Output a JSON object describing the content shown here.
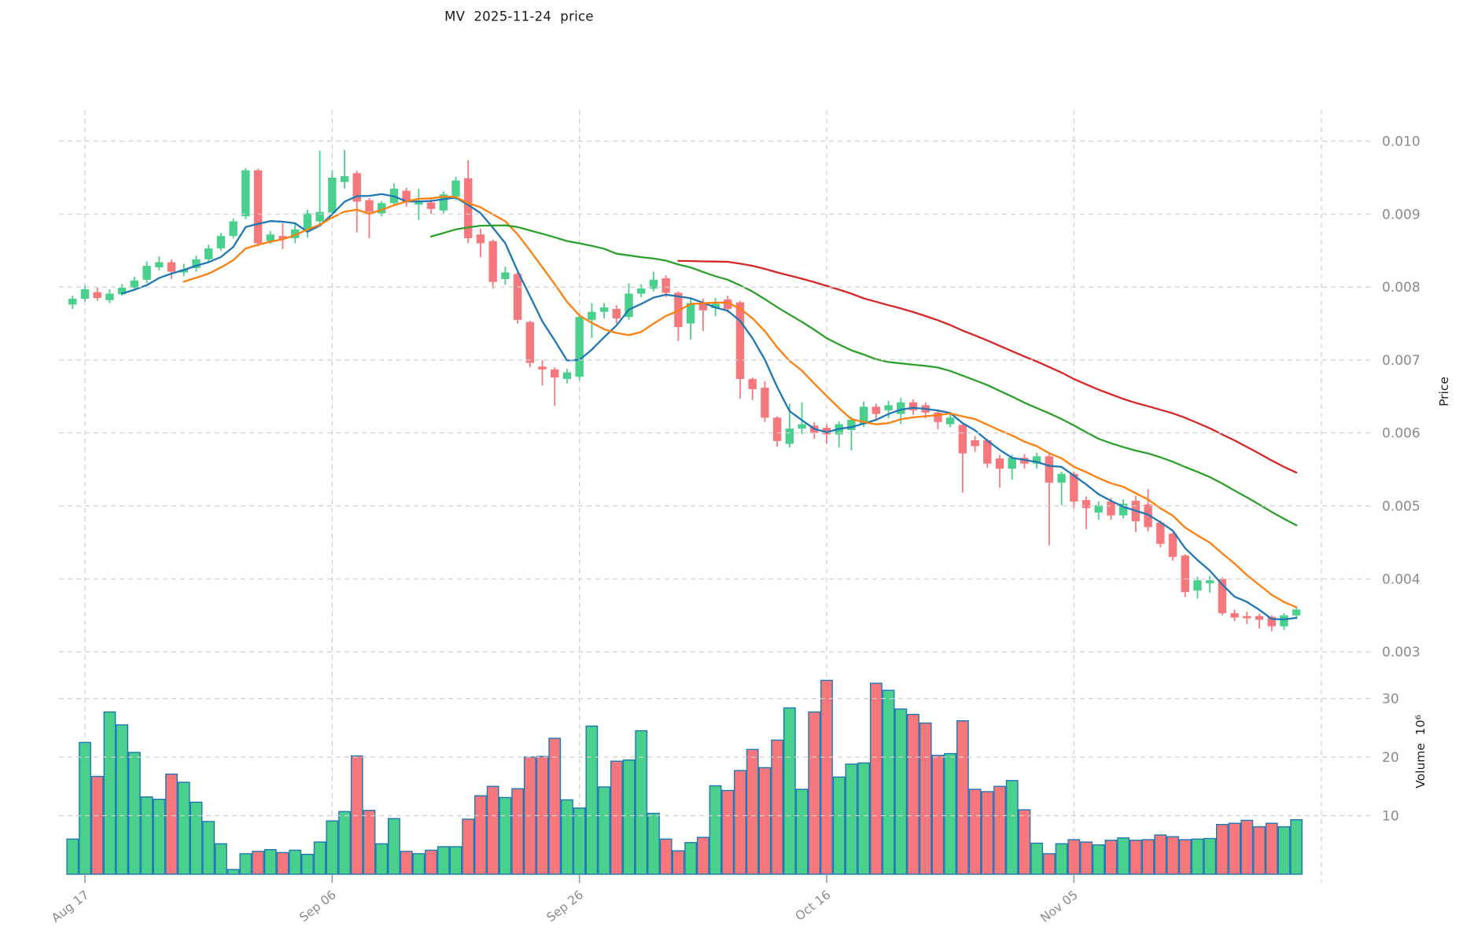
{
  "title": "MV  2025-11-24  price",
  "axes": {
    "price_label": "Price",
    "volume_label": "Volume  10⁶",
    "price_tick_labels": [
      "0.010",
      "0.009",
      "0.008",
      "0.007",
      "0.006",
      "0.005",
      "0.004",
      "0.003"
    ],
    "volume_tick_labels": [
      "30",
      "20",
      "10"
    ],
    "x_tick_labels": [
      "Aug 17",
      "Sep 06",
      "Sep 26",
      "Oct 16",
      "Nov 05"
    ]
  },
  "colors": {
    "up": "#48d08c",
    "down": "#f6787d",
    "volume_edge": "#1f77b4",
    "ma_blue": "#1f77b4",
    "ma_orange": "#ff7f0e",
    "ma_green": "#2ca02c",
    "ma_red": "#d62728",
    "grid": "#cfcfcf",
    "tick_text": "#8a8a8a",
    "title_text": "#1a1a1a"
  },
  "chart_data": {
    "type": "candlestick",
    "title": "MV  2025-11-24  price",
    "start_date": "2025-08-16",
    "interval": "1 day",
    "n_bars": 100,
    "x_ticks": [
      {
        "index": 1,
        "label": "Aug 17"
      },
      {
        "index": 21,
        "label": "Sep 06"
      },
      {
        "index": 41,
        "label": "Sep 26"
      },
      {
        "index": 61,
        "label": "Oct 16"
      },
      {
        "index": 81,
        "label": "Nov 05"
      }
    ],
    "price_axis_ticks": [
      0.01,
      0.009,
      0.008,
      0.007,
      0.006,
      0.005,
      0.004,
      0.003
    ],
    "volume_axis_ticks_millions": [
      30,
      20,
      10
    ],
    "ylabel_price": "Price",
    "ylabel_volume": "Volume 10^6",
    "moving_averages": [
      {
        "window": 5,
        "color": "#1f77b4"
      },
      {
        "window": 10,
        "color": "#ff7f0e"
      },
      {
        "window": 30,
        "color": "#2ca02c"
      },
      {
        "window": 50,
        "color": "#d62728"
      }
    ],
    "open": [
      0.00776,
      0.00784,
      0.00793,
      0.00782,
      0.0079,
      0.00799,
      0.0081,
      0.00827,
      0.00834,
      0.0082,
      0.00826,
      0.00838,
      0.00853,
      0.0087,
      0.00897,
      0.0096,
      0.00863,
      0.0087,
      0.00867,
      0.00878,
      0.0089,
      0.00902,
      0.00944,
      0.00956,
      0.00919,
      0.00901,
      0.00915,
      0.00932,
      0.00913,
      0.00916,
      0.00905,
      0.00924,
      0.00949,
      0.00872,
      0.00863,
      0.00811,
      0.00818,
      0.00752,
      0.00691,
      0.00687,
      0.00674,
      0.00677,
      0.00755,
      0.00766,
      0.0077,
      0.00759,
      0.00791,
      0.00798,
      0.00812,
      0.00792,
      0.0075,
      0.00777,
      0.00771,
      0.00783,
      0.00779,
      0.00674,
      0.00662,
      0.00621,
      0.00585,
      0.00606,
      0.0061,
      0.00607,
      0.00598,
      0.00604,
      0.00612,
      0.00636,
      0.00631,
      0.00626,
      0.00642,
      0.00638,
      0.00628,
      0.00612,
      0.00611,
      0.0059,
      0.0059,
      0.00565,
      0.00551,
      0.00566,
      0.00558,
      0.00568,
      0.00532,
      0.00544,
      0.00508,
      0.00491,
      0.00506,
      0.00487,
      0.00507,
      0.00502,
      0.00477,
      0.00462,
      0.00432,
      0.00384,
      0.00394,
      0.004,
      0.00353,
      0.00349,
      0.00349,
      0.00348,
      0.00335,
      0.0035
    ],
    "high": [
      0.00788,
      0.00802,
      0.00799,
      0.00797,
      0.00804,
      0.00814,
      0.00835,
      0.00842,
      0.00838,
      0.00832,
      0.00843,
      0.00858,
      0.00874,
      0.00894,
      0.00963,
      0.00962,
      0.00877,
      0.00888,
      0.00887,
      0.00906,
      0.00987,
      0.0096,
      0.00988,
      0.00959,
      0.00922,
      0.00918,
      0.00942,
      0.00936,
      0.00935,
      0.0092,
      0.00931,
      0.00951,
      0.00974,
      0.0088,
      0.00865,
      0.00828,
      0.0082,
      0.00754,
      0.007,
      0.0069,
      0.00688,
      0.00764,
      0.00778,
      0.00778,
      0.00775,
      0.00805,
      0.00804,
      0.00821,
      0.00816,
      0.00794,
      0.00784,
      0.00784,
      0.00785,
      0.00788,
      0.00781,
      0.00676,
      0.00671,
      0.00623,
      0.0064,
      0.00642,
      0.00615,
      0.00612,
      0.00616,
      0.00622,
      0.00643,
      0.0064,
      0.00644,
      0.00648,
      0.00646,
      0.00642,
      0.00632,
      0.00626,
      0.00614,
      0.00596,
      0.00592,
      0.0057,
      0.0057,
      0.00571,
      0.00573,
      0.00571,
      0.00547,
      0.00547,
      0.00513,
      0.00506,
      0.00511,
      0.00509,
      0.00514,
      0.00523,
      0.0048,
      0.00464,
      0.00434,
      0.00403,
      0.00404,
      0.00402,
      0.00358,
      0.00355,
      0.00352,
      0.0035,
      0.00353,
      0.0036
    ],
    "low": [
      0.0077,
      0.0078,
      0.00781,
      0.00778,
      0.00788,
      0.00796,
      0.00805,
      0.00823,
      0.00811,
      0.00815,
      0.00821,
      0.00834,
      0.0085,
      0.00867,
      0.00893,
      0.00856,
      0.00859,
      0.00852,
      0.0086,
      0.00868,
      0.00886,
      0.00899,
      0.00935,
      0.00875,
      0.00867,
      0.00897,
      0.00911,
      0.0091,
      0.00892,
      0.009,
      0.00901,
      0.00919,
      0.0086,
      0.00841,
      0.00798,
      0.00803,
      0.0075,
      0.0069,
      0.00665,
      0.00637,
      0.00668,
      0.00672,
      0.0073,
      0.00757,
      0.0075,
      0.00755,
      0.00786,
      0.00794,
      0.00786,
      0.00726,
      0.00728,
      0.0074,
      0.0076,
      0.00765,
      0.00647,
      0.00645,
      0.00615,
      0.00581,
      0.0058,
      0.00598,
      0.00592,
      0.00585,
      0.0058,
      0.00576,
      0.00608,
      0.00618,
      0.0062,
      0.00612,
      0.00625,
      0.0062,
      0.00605,
      0.00608,
      0.00518,
      0.00574,
      0.00552,
      0.00525,
      0.00536,
      0.00551,
      0.00551,
      0.00446,
      0.00501,
      0.00497,
      0.00468,
      0.00481,
      0.00481,
      0.00483,
      0.00464,
      0.00465,
      0.00443,
      0.00425,
      0.00375,
      0.00373,
      0.00381,
      0.0035,
      0.00342,
      0.00338,
      0.00332,
      0.00328,
      0.0033,
      0.00345
    ],
    "close": [
      0.00784,
      0.00797,
      0.00785,
      0.00791,
      0.00799,
      0.00809,
      0.00829,
      0.00834,
      0.00821,
      0.00824,
      0.00838,
      0.00853,
      0.0087,
      0.0089,
      0.0096,
      0.0086,
      0.00872,
      0.00866,
      0.00879,
      0.00901,
      0.00903,
      0.0095,
      0.00952,
      0.00917,
      0.00903,
      0.00915,
      0.00935,
      0.00917,
      0.00916,
      0.00907,
      0.00927,
      0.00946,
      0.00867,
      0.0086,
      0.00807,
      0.0082,
      0.00755,
      0.00696,
      0.00687,
      0.00676,
      0.00683,
      0.00759,
      0.00766,
      0.00772,
      0.00757,
      0.00791,
      0.00798,
      0.0081,
      0.00792,
      0.00745,
      0.00778,
      0.00768,
      0.00777,
      0.0077,
      0.00674,
      0.0066,
      0.00621,
      0.00589,
      0.00606,
      0.00612,
      0.006,
      0.00598,
      0.00612,
      0.00618,
      0.00636,
      0.00626,
      0.00638,
      0.00642,
      0.00631,
      0.00628,
      0.00615,
      0.00621,
      0.00572,
      0.00582,
      0.00558,
      0.00551,
      0.00566,
      0.00558,
      0.00568,
      0.00532,
      0.00544,
      0.00506,
      0.00497,
      0.00501,
      0.00487,
      0.00503,
      0.00479,
      0.00471,
      0.00448,
      0.0043,
      0.00382,
      0.00398,
      0.00398,
      0.00353,
      0.00347,
      0.00346,
      0.00344,
      0.00335,
      0.0035,
      0.00358
    ],
    "volume_millions": [
      6,
      22.5,
      16.7,
      27.7,
      25.5,
      20.8,
      13.2,
      12.8,
      17.1,
      15.7,
      12.3,
      9,
      5.2,
      0.8,
      3.5,
      3.9,
      4.2,
      3.7,
      4.1,
      3.4,
      5.5,
      9.1,
      10.7,
      20.2,
      10.9,
      5.2,
      9.5,
      3.9,
      3.5,
      4.1,
      4.7,
      4.7,
      9.4,
      13.4,
      15,
      13.1,
      14.6,
      20,
      20.1,
      23.2,
      12.7,
      11.3,
      25.3,
      14.9,
      19.3,
      19.5,
      24.5,
      10.4,
      6,
      4,
      5.4,
      6.3,
      15.1,
      14.3,
      17.7,
      21.3,
      18.2,
      22.9,
      28.4,
      14.5,
      27.7,
      33.1,
      16.6,
      18.8,
      19,
      32.6,
      31.4,
      28.2,
      27.3,
      25.8,
      20.3,
      20.6,
      26.2,
      14.5,
      14.1,
      15,
      16,
      11,
      5.3,
      3.5,
      5.2,
      5.9,
      5.5,
      5,
      5.8,
      6.2,
      5.8,
      5.9,
      6.7,
      6.4,
      5.9,
      6,
      6.1,
      8.5,
      8.7,
      9.2,
      8.1,
      8.7,
      8.1,
      9.3
    ]
  }
}
